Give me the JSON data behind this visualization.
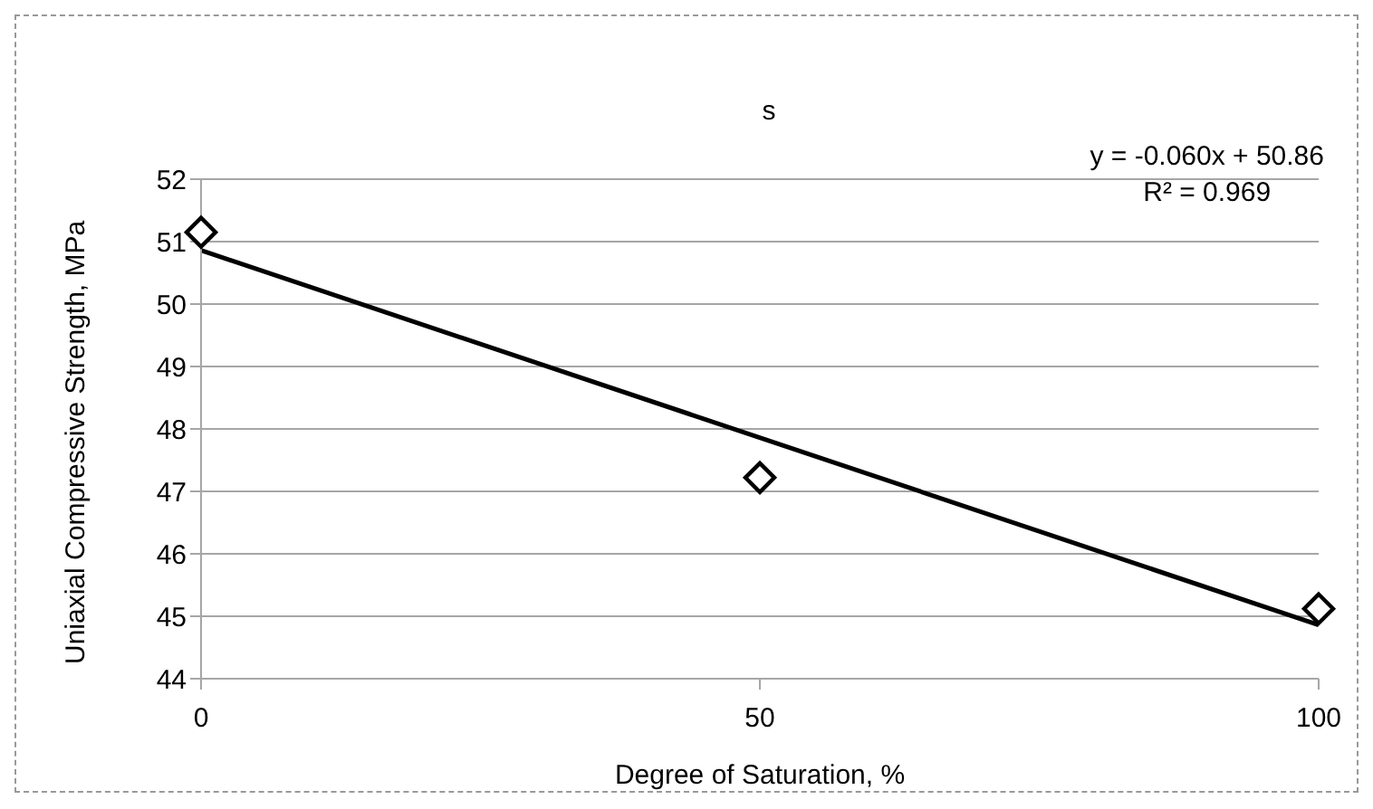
{
  "chart_data": {
    "type": "scatter",
    "title": "s",
    "xlabel": "Degree of Saturation, %",
    "ylabel": "Uniaxial Compressive Strength, MPa",
    "x": [
      0,
      50,
      100
    ],
    "series": [
      {
        "type": "scatter",
        "color": "#000000",
        "values": [
          51.15,
          47.22,
          45.12
        ]
      },
      {
        "type": "line",
        "color": "#000000",
        "x": [
          0,
          100
        ],
        "values": [
          50.86,
          44.86
        ],
        "line_style": "solid",
        "marker": "none"
      }
    ],
    "xlim": [
      0,
      100
    ],
    "xticks": [
      0,
      50,
      100
    ],
    "ylim": [
      44,
      52
    ],
    "yticks": [
      44,
      45,
      46,
      47,
      48,
      49,
      50,
      51,
      52
    ],
    "grid": "y",
    "marker": "diamond",
    "annotations": [
      "y = -0.060x + 50.86",
      "R² = 0.969"
    ]
  }
}
